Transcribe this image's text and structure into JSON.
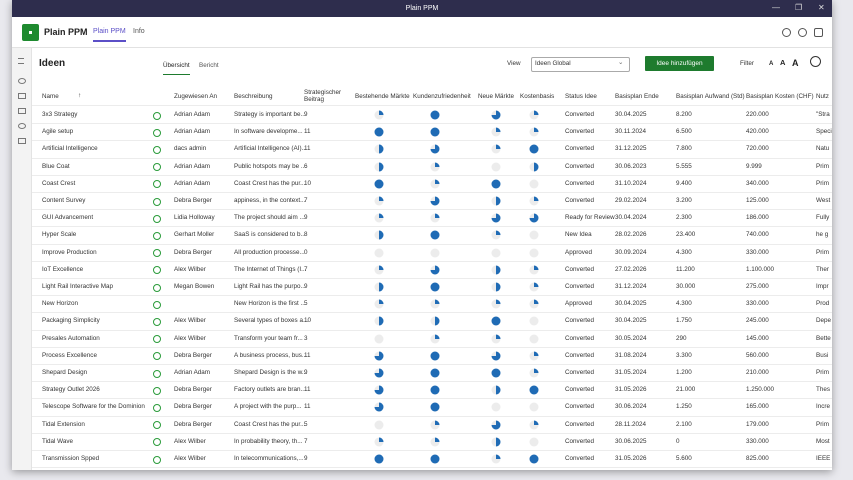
{
  "window_title": "Plain PPM",
  "app": {
    "name": "Plain PPM",
    "tabs": [
      "Plain PPM",
      "Info"
    ]
  },
  "page": {
    "title": "Ideen",
    "tabs": [
      "Übersicht",
      "Bericht"
    ],
    "view_label": "View",
    "view_value": "Ideen Global",
    "add_button": "Idee hinzufügen",
    "filter": "Filter",
    "font_sizes": [
      "A",
      "A",
      "A"
    ]
  },
  "table": {
    "columns": [
      "Name",
      "Zugewiesen An",
      "Beschreibung",
      "Strategischer Beitrag",
      "Bestehende Märkte",
      "Kundenzufriedenheit",
      "Neue Märkte",
      "Kostenbasis",
      "Status Idee",
      "Basisplan Ende",
      "Basisplan Aufwand (Std)",
      "Basisplan Kosten (CHF)",
      "Nutz"
    ],
    "rows": [
      {
        "name": "3x3 Strategy",
        "assigned": "Adrian Adam",
        "description": "Strategy is important be...",
        "contribution": 9,
        "harvey": [
          1,
          4,
          3,
          1
        ],
        "status": "Converted",
        "end": "30.04.2025",
        "effort": "8.200",
        "cost": "220.000",
        "benefit": "\"Stra"
      },
      {
        "name": "Agile setup",
        "assigned": "Adrian Adam",
        "description": "In software developme...",
        "contribution": 11,
        "harvey": [
          4,
          4,
          1,
          1
        ],
        "status": "Converted",
        "end": "30.11.2024",
        "effort": "6.500",
        "cost": "420.000",
        "benefit": "Speci"
      },
      {
        "name": "Artificial Intelligence",
        "assigned": "dacs admin",
        "description": "Artificial Intelligence (AI)...",
        "contribution": 11,
        "harvey": [
          2,
          3,
          1,
          4
        ],
        "status": "Converted",
        "end": "31.12.2025",
        "effort": "7.800",
        "cost": "720.000",
        "benefit": "Natu"
      },
      {
        "name": "Blue Coat",
        "assigned": "Adrian Adam",
        "description": "Public hotspots may be ...",
        "contribution": 6,
        "harvey": [
          2,
          1,
          0,
          2
        ],
        "status": "Converted",
        "end": "30.06.2023",
        "effort": "5.555",
        "cost": "9.999",
        "benefit": "Prim"
      },
      {
        "name": "Coast Crest",
        "assigned": "Adrian Adam",
        "description": "Coast Crest has the pur...",
        "contribution": 10,
        "harvey": [
          4,
          1,
          4,
          0
        ],
        "status": "Converted",
        "end": "31.10.2024",
        "effort": "9.400",
        "cost": "340.000",
        "benefit": "Prim"
      },
      {
        "name": "Content Survey",
        "assigned": "Debra Berger",
        "description": "appiness, in the context...",
        "contribution": 7,
        "harvey": [
          1,
          3,
          2,
          1
        ],
        "status": "Converted",
        "end": "29.02.2024",
        "effort": "3.200",
        "cost": "125.000",
        "benefit": "West"
      },
      {
        "name": "GUI Advancement",
        "assigned": "Lidia Holloway",
        "description": "The project should aim ...",
        "contribution": 9,
        "harvey": [
          1,
          1,
          3,
          3
        ],
        "status": "Ready for Review",
        "end": "30.04.2024",
        "effort": "2.300",
        "cost": "186.000",
        "benefit": "Fully"
      },
      {
        "name": "Hyper Scale",
        "assigned": "Gerhart Moller",
        "description": "SaaS is considered to b...",
        "contribution": 8,
        "harvey": [
          2,
          4,
          1,
          0
        ],
        "status": "New Idea",
        "end": "28.02.2026",
        "effort": "23.400",
        "cost": "740.000",
        "benefit": "he g"
      },
      {
        "name": "Improve Production",
        "assigned": "Debra Berger",
        "description": "All production processe...",
        "contribution": 0,
        "harvey": [
          0,
          0,
          0,
          0
        ],
        "status": "Approved",
        "end": "30.09.2024",
        "effort": "4.300",
        "cost": "330.000",
        "benefit": "Prim"
      },
      {
        "name": "IoT Excellence",
        "assigned": "Alex Wilber",
        "description": "The Internet of Things (I...",
        "contribution": 7,
        "harvey": [
          1,
          3,
          2,
          1
        ],
        "status": "Converted",
        "end": "27.02.2026",
        "effort": "11.200",
        "cost": "1.100.000",
        "benefit": "Ther"
      },
      {
        "name": "Light Rail Interactive Map",
        "assigned": "Megan Bowen",
        "description": "Light Rail has the purpo...",
        "contribution": 9,
        "harvey": [
          2,
          4,
          2,
          1
        ],
        "status": "Converted",
        "end": "31.12.2024",
        "effort": "30.000",
        "cost": "275.000",
        "benefit": "Impr"
      },
      {
        "name": "New Horizon",
        "assigned": null,
        "description": "New Horizon is the first ...",
        "contribution": 5,
        "harvey": [
          1,
          1,
          1,
          1
        ],
        "status": "Approved",
        "end": "30.04.2025",
        "effort": "4.300",
        "cost": "330.000",
        "benefit": "Prod"
      },
      {
        "name": "Packaging Simplicity",
        "assigned": "Alex Wilber",
        "description": "Several types of boxes a...",
        "contribution": 10,
        "harvey": [
          2,
          2,
          4,
          0
        ],
        "status": "Converted",
        "end": "30.04.2025",
        "effort": "1.750",
        "cost": "245.000",
        "benefit": "Depe"
      },
      {
        "name": "Presales Automation",
        "assigned": "Alex Wilber",
        "description": "Transform your team fr...",
        "contribution": 3,
        "harvey": [
          0,
          1,
          1,
          0
        ],
        "status": "Converted",
        "end": "30.05.2024",
        "effort": "290",
        "cost": "145.000",
        "benefit": "Bette"
      },
      {
        "name": "Process Excellence",
        "assigned": "Debra Berger",
        "description": "A business process, bus...",
        "contribution": 11,
        "harvey": [
          3,
          4,
          3,
          1
        ],
        "status": "Converted",
        "end": "31.08.2024",
        "effort": "3.300",
        "cost": "560.000",
        "benefit": "Busi"
      },
      {
        "name": "Shepard Design",
        "assigned": "Adrian Adam",
        "description": "Shepard Design is the w...",
        "contribution": 9,
        "harvey": [
          3,
          4,
          4,
          1
        ],
        "status": "Converted",
        "end": "31.05.2024",
        "effort": "1.200",
        "cost": "210.000",
        "benefit": "Prim"
      },
      {
        "name": "Strategy Outlet 2026",
        "assigned": "Debra Berger",
        "description": "Factory outlets are bran...",
        "contribution": 11,
        "harvey": [
          3,
          4,
          2,
          4
        ],
        "status": "Converted",
        "end": "31.05.2026",
        "effort": "21.000",
        "cost": "1.250.000",
        "benefit": "Thes"
      },
      {
        "name": "Telescope Software for the Dominion",
        "assigned": "Debra Berger",
        "description": "A project with the purp...",
        "contribution": 11,
        "harvey": [
          3,
          4,
          0,
          0
        ],
        "status": "Converted",
        "end": "30.06.2024",
        "effort": "1.250",
        "cost": "165.000",
        "benefit": "Incre"
      },
      {
        "name": "Tidal Extension",
        "assigned": "Debra Berger",
        "description": "Coast Crest has the pur...",
        "contribution": 5,
        "harvey": [
          0,
          1,
          3,
          1
        ],
        "status": "Converted",
        "end": "28.11.2024",
        "effort": "2.100",
        "cost": "179.000",
        "benefit": "Prim"
      },
      {
        "name": "Tidal Wave",
        "assigned": "Alex Wilber",
        "description": "In probability theory, th...",
        "contribution": 7,
        "harvey": [
          1,
          1,
          2,
          0
        ],
        "status": "Converted",
        "end": "30.06.2025",
        "effort": "0",
        "cost": "330.000",
        "benefit": "Most"
      },
      {
        "name": "Transmission Spped",
        "assigned": "Alex Wilber",
        "description": "In telecommunications,...",
        "contribution": 9,
        "harvey": [
          4,
          4,
          1,
          4
        ],
        "status": "Converted",
        "end": "31.05.2026",
        "effort": "5.600",
        "cost": "825.000",
        "benefit": "IEEE"
      }
    ]
  }
}
